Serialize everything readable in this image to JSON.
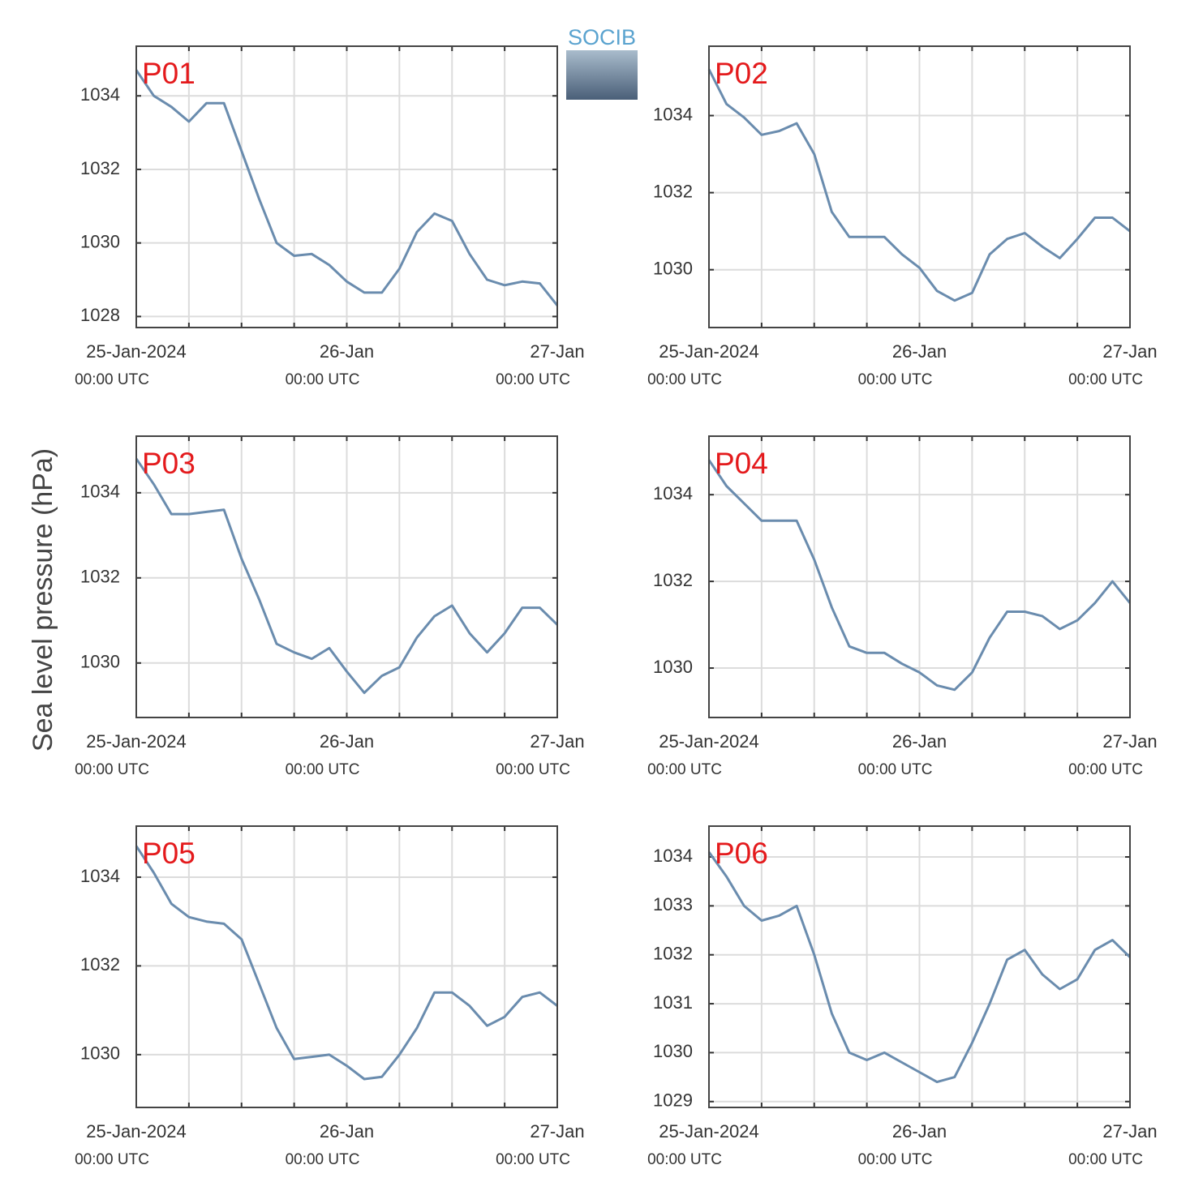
{
  "ylabel": "Sea level pressure (hPa)",
  "logo": "SOCIB",
  "chart_data": [
    {
      "type": "line",
      "title": "P01",
      "color": "#6a8cae",
      "grid": true,
      "x": [
        0,
        2,
        4,
        6,
        8,
        10,
        12,
        14,
        16,
        18,
        20,
        22,
        24,
        26,
        28,
        30,
        32,
        34,
        36,
        38,
        40,
        42,
        44,
        46,
        48
      ],
      "values": [
        1034.7,
        1034.0,
        1033.7,
        1033.3,
        1033.8,
        1033.8,
        1032.5,
        1031.2,
        1030.0,
        1029.65,
        1029.7,
        1029.4,
        1028.95,
        1028.65,
        1028.65,
        1029.3,
        1030.3,
        1030.8,
        1030.6,
        1029.7,
        1029.0,
        1028.85,
        1028.95,
        1028.9,
        1028.3
      ],
      "xlim": [
        0,
        48
      ],
      "xminor": [
        6,
        12,
        18,
        24,
        30,
        36,
        42
      ],
      "xticks": [
        {
          "value": 0,
          "label": "25-Jan-2024",
          "sublabel": "00:00 UTC"
        },
        {
          "value": 24,
          "label": "26-Jan",
          "sublabel": "00:00 UTC"
        },
        {
          "value": 48,
          "label": "27-Jan",
          "sublabel": "00:00 UTC"
        }
      ],
      "ylim": [
        1027.7,
        1035.35
      ],
      "yticks": [
        1028,
        1030,
        1032,
        1034
      ]
    },
    {
      "type": "line",
      "title": "P02",
      "color": "#6a8cae",
      "grid": true,
      "x": [
        0,
        2,
        4,
        6,
        8,
        10,
        12,
        14,
        16,
        18,
        20,
        22,
        24,
        26,
        28,
        30,
        32,
        34,
        36,
        38,
        40,
        42,
        44,
        46,
        48
      ],
      "values": [
        1035.2,
        1034.3,
        1033.95,
        1033.5,
        1033.6,
        1033.8,
        1033.0,
        1031.5,
        1030.85,
        1030.85,
        1030.85,
        1030.4,
        1030.05,
        1029.45,
        1029.2,
        1029.4,
        1030.4,
        1030.8,
        1030.95,
        1030.6,
        1030.3,
        1030.8,
        1031.35,
        1031.35,
        1031.0
      ],
      "xlim": [
        0,
        48
      ],
      "xminor": [
        6,
        12,
        18,
        24,
        30,
        36,
        42
      ],
      "xticks": [
        {
          "value": 0,
          "label": "25-Jan-2024",
          "sublabel": "00:00 UTC"
        },
        {
          "value": 24,
          "label": "26-Jan",
          "sublabel": "00:00 UTC"
        },
        {
          "value": 48,
          "label": "27-Jan",
          "sublabel": "00:00 UTC"
        }
      ],
      "ylim": [
        1028.5,
        1035.8
      ],
      "yticks": [
        1030,
        1032,
        1034
      ]
    },
    {
      "type": "line",
      "title": "P03",
      "color": "#6a8cae",
      "grid": true,
      "x": [
        0,
        2,
        4,
        6,
        8,
        10,
        12,
        14,
        16,
        18,
        20,
        22,
        24,
        26,
        28,
        30,
        32,
        34,
        36,
        38,
        40,
        42,
        44,
        46,
        48
      ],
      "values": [
        1034.8,
        1034.2,
        1033.5,
        1033.5,
        1033.55,
        1033.6,
        1032.45,
        1031.5,
        1030.45,
        1030.25,
        1030.1,
        1030.35,
        1029.8,
        1029.3,
        1029.7,
        1029.9,
        1030.6,
        1031.1,
        1031.35,
        1030.7,
        1030.25,
        1030.7,
        1031.3,
        1031.3,
        1030.9
      ],
      "xlim": [
        0,
        48
      ],
      "xminor": [
        6,
        12,
        18,
        24,
        30,
        36,
        42
      ],
      "xticks": [
        {
          "value": 0,
          "label": "25-Jan-2024",
          "sublabel": "00:00 UTC"
        },
        {
          "value": 24,
          "label": "26-Jan",
          "sublabel": "00:00 UTC"
        },
        {
          "value": 48,
          "label": "27-Jan",
          "sublabel": "00:00 UTC"
        }
      ],
      "ylim": [
        1028.72,
        1035.33
      ],
      "yticks": [
        1030,
        1032,
        1034
      ]
    },
    {
      "type": "line",
      "title": "P04",
      "color": "#6a8cae",
      "grid": true,
      "x": [
        0,
        2,
        4,
        6,
        8,
        10,
        12,
        14,
        16,
        18,
        20,
        22,
        24,
        26,
        28,
        30,
        32,
        34,
        36,
        38,
        40,
        42,
        44,
        46,
        48
      ],
      "values": [
        1034.8,
        1034.2,
        1033.8,
        1033.4,
        1033.4,
        1033.4,
        1032.5,
        1031.4,
        1030.5,
        1030.35,
        1030.35,
        1030.1,
        1029.9,
        1029.6,
        1029.5,
        1029.9,
        1030.7,
        1031.3,
        1031.3,
        1031.2,
        1030.9,
        1031.1,
        1031.5,
        1032.0,
        1031.5
      ],
      "xlim": [
        0,
        48
      ],
      "xminor": [
        6,
        12,
        18,
        24,
        30,
        36,
        42
      ],
      "xticks": [
        {
          "value": 0,
          "label": "25-Jan-2024",
          "sublabel": "00:00 UTC"
        },
        {
          "value": 24,
          "label": "26-Jan",
          "sublabel": "00:00 UTC"
        },
        {
          "value": 48,
          "label": "27-Jan",
          "sublabel": "00:00 UTC"
        }
      ],
      "ylim": [
        1028.86,
        1035.35
      ],
      "yticks": [
        1030,
        1032,
        1034
      ]
    },
    {
      "type": "line",
      "title": "P05",
      "color": "#6a8cae",
      "grid": true,
      "x": [
        0,
        2,
        4,
        6,
        8,
        10,
        12,
        14,
        16,
        18,
        20,
        22,
        24,
        26,
        28,
        30,
        32,
        34,
        36,
        38,
        40,
        42,
        44,
        46,
        48
      ],
      "values": [
        1034.7,
        1034.1,
        1033.4,
        1033.1,
        1033.0,
        1032.95,
        1032.6,
        1031.6,
        1030.6,
        1029.9,
        1029.95,
        1030.0,
        1029.75,
        1029.45,
        1029.5,
        1030.0,
        1030.6,
        1031.4,
        1031.4,
        1031.1,
        1030.65,
        1030.85,
        1031.3,
        1031.4,
        1031.1
      ],
      "xlim": [
        0,
        48
      ],
      "xminor": [
        6,
        12,
        18,
        24,
        30,
        36,
        42
      ],
      "xticks": [
        {
          "value": 0,
          "label": "25-Jan-2024",
          "sublabel": "00:00 UTC"
        },
        {
          "value": 24,
          "label": "26-Jan",
          "sublabel": "00:00 UTC"
        },
        {
          "value": 48,
          "label": "27-Jan",
          "sublabel": "00:00 UTC"
        }
      ],
      "ylim": [
        1028.81,
        1035.15
      ],
      "yticks": [
        1030,
        1032,
        1034
      ]
    },
    {
      "type": "line",
      "title": "P06",
      "color": "#6a8cae",
      "grid": true,
      "x": [
        0,
        2,
        4,
        6,
        8,
        10,
        12,
        14,
        16,
        18,
        20,
        22,
        24,
        26,
        28,
        30,
        32,
        34,
        36,
        38,
        40,
        42,
        44,
        46,
        48
      ],
      "values": [
        1034.1,
        1033.6,
        1033.0,
        1032.7,
        1032.8,
        1033.0,
        1032.0,
        1030.8,
        1030.0,
        1029.85,
        1030.0,
        1029.8,
        1029.6,
        1029.4,
        1029.5,
        1030.2,
        1031.0,
        1031.9,
        1032.1,
        1031.6,
        1031.3,
        1031.5,
        1032.1,
        1032.3,
        1031.95
      ],
      "xlim": [
        0,
        48
      ],
      "xminor": [
        6,
        12,
        18,
        24,
        30,
        36,
        42
      ],
      "xticks": [
        {
          "value": 0,
          "label": "25-Jan-2024",
          "sublabel": "00:00 UTC"
        },
        {
          "value": 24,
          "label": "26-Jan",
          "sublabel": "00:00 UTC"
        },
        {
          "value": 48,
          "label": "27-Jan",
          "sublabel": "00:00 UTC"
        }
      ],
      "ylim": [
        1028.88,
        1034.63
      ],
      "yticks": [
        1029,
        1030,
        1031,
        1032,
        1033,
        1034
      ]
    }
  ]
}
